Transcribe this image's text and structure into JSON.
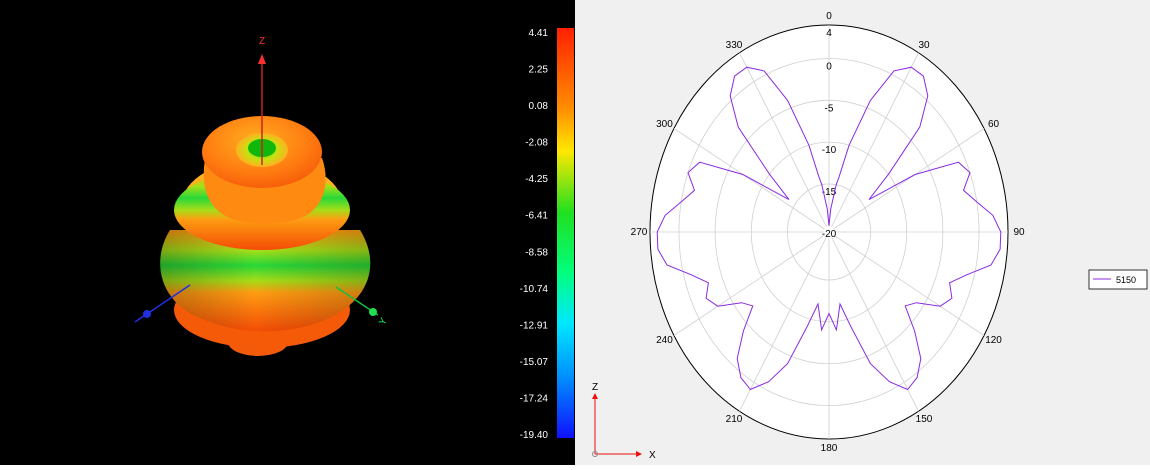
{
  "pattern_3d": {
    "axes": {
      "z": "Z",
      "y": "Y"
    },
    "colorbar": {
      "ticks": [
        "4.41",
        "2.25",
        "0.08",
        "-2.08",
        "-4.25",
        "-6.41",
        "-8.58",
        "-10.74",
        "-12.91",
        "-15.07",
        "-17.24",
        "-19.40"
      ],
      "max": 4.41,
      "min": -19.4
    }
  },
  "chart_data": {
    "type": "polar-line",
    "angular_ticks": [
      "0",
      "30",
      "60",
      "90",
      "120",
      "150",
      "180",
      "210",
      "240",
      "270",
      "300",
      "330"
    ],
    "radial_ticks": [
      "4",
      "0",
      "-5",
      "-10",
      "-15",
      "-20"
    ],
    "rlim": [
      -20,
      4
    ],
    "theta_direction": "clockwise",
    "theta_zero": "top",
    "grid": true,
    "legend_position": "right",
    "series": [
      {
        "name": "5150",
        "color": "#8a2be2",
        "theta": [
          0,
          5,
          10,
          12,
          15,
          20,
          25,
          30,
          35,
          40,
          45,
          50,
          55,
          60,
          65,
          70,
          75,
          80,
          85,
          90,
          95,
          100,
          105,
          110,
          115,
          120,
          125,
          130,
          135,
          140,
          145,
          150,
          155,
          160,
          165,
          170,
          175,
          180,
          185,
          190,
          195,
          200,
          205,
          210,
          215,
          220,
          225,
          230,
          235,
          240,
          245,
          250,
          255,
          260,
          265,
          270,
          275,
          280,
          285,
          290,
          295,
          300,
          305,
          310,
          315,
          320,
          325,
          330,
          335,
          340,
          345,
          348,
          350,
          355,
          360
        ],
        "r": [
          -20,
          -18,
          -15,
          -14,
          -10,
          -4,
          0.5,
          2,
          2,
          0.5,
          -3,
          -10,
          -14,
          -7,
          -1,
          0,
          -1.5,
          0,
          2,
          3,
          3,
          2,
          -1,
          -3,
          -2,
          -3,
          -6,
          -7,
          -4,
          -1,
          0.5,
          1,
          -1,
          -4,
          -9,
          -12,
          -9,
          -11,
          -9,
          -12,
          -9,
          -4,
          -1,
          1,
          0.5,
          -1,
          -4,
          -7,
          -6,
          -3,
          -2,
          -3,
          -1,
          2,
          3,
          3,
          2,
          0,
          -1.5,
          0,
          -1,
          -7,
          -14,
          -10,
          -3,
          0.5,
          2,
          2,
          0.5,
          -4,
          -10,
          -14,
          -15,
          -18,
          -20
        ]
      }
    ]
  },
  "orientation_gizmo": {
    "up": "Z",
    "right": "X"
  }
}
